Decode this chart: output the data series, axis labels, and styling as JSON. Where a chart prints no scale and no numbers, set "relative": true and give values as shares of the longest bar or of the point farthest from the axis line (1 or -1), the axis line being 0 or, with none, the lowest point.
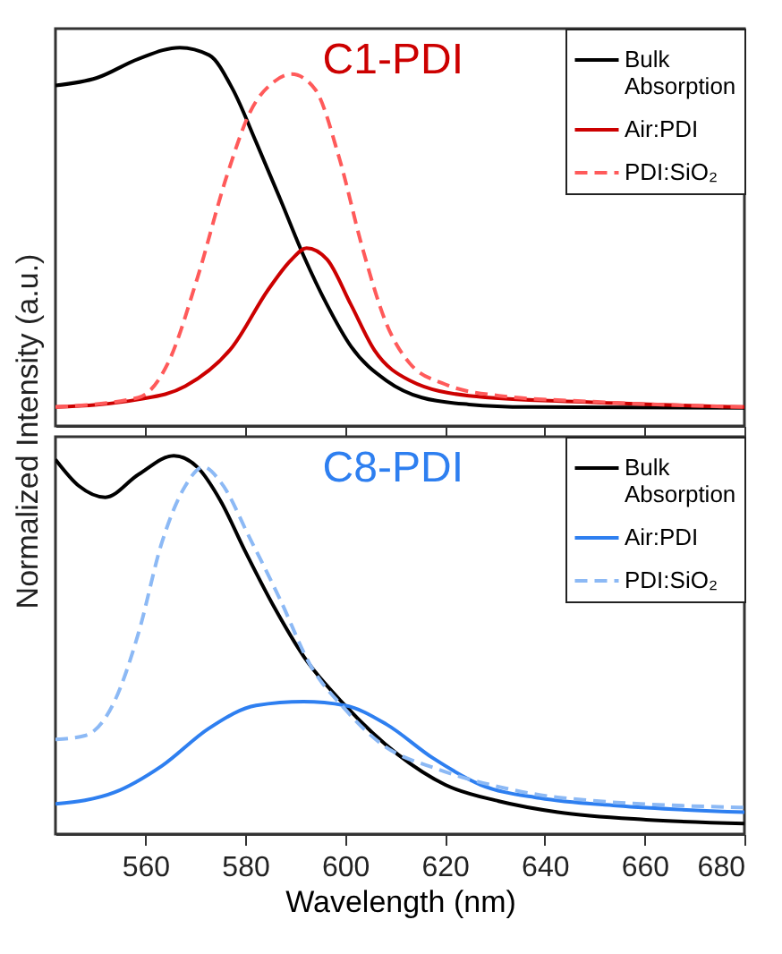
{
  "chart_data": [
    {
      "type": "line",
      "title": "C1-PDI",
      "relative": true,
      "ylabel": "Normalized Intensity (a.u.)",
      "xlim": [
        542,
        680
      ],
      "xticks": [
        560,
        580,
        600,
        620,
        640,
        660,
        680
      ],
      "tick_labels": false,
      "grid": false,
      "legend": "top right",
      "marker": "none",
      "series": [
        {
          "name": "Bulk\nAbsorption",
          "color": "#000000",
          "line_style": "solid",
          "x": [
            542,
            550.3,
            558.6,
            566.9,
            572.8,
            577.5,
            582.2,
            587,
            591.7,
            596.4,
            601.2,
            608.3,
            615.4,
            624.8,
            636.7,
            680
          ],
          "values": [
            0.9,
            0.92,
            0.97,
            1.0,
            0.98,
            0.89,
            0.75,
            0.6,
            0.45,
            0.32,
            0.21,
            0.12,
            0.075,
            0.057,
            0.05,
            0.048
          ]
        },
        {
          "name": "Air:PDI",
          "color": "#cc0000",
          "line_style": "solid",
          "x": [
            542,
            558.6,
            568,
            577.5,
            584.6,
            589.3,
            592.3,
            596.4,
            601.2,
            605.9,
            613,
            624.8,
            648.5,
            680
          ],
          "values": [
            0.05,
            0.07,
            0.105,
            0.21,
            0.36,
            0.44,
            0.47,
            0.44,
            0.32,
            0.2,
            0.12,
            0.08,
            0.063,
            0.05
          ]
        },
        {
          "name": "PDI:SiO₂",
          "color": "#ff5a5a",
          "line_style": "dashed",
          "x": [
            542,
            558.6,
            564.5,
            570.4,
            576.3,
            581,
            585.8,
            589.3,
            594,
            598.8,
            603.5,
            608.3,
            613,
            620.1,
            630.8,
            648.5,
            680
          ],
          "values": [
            0.05,
            0.075,
            0.165,
            0.39,
            0.66,
            0.83,
            0.91,
            0.93,
            0.89,
            0.71,
            0.47,
            0.27,
            0.165,
            0.11,
            0.08,
            0.065,
            0.05
          ]
        }
      ]
    },
    {
      "type": "line",
      "title": "C8-PDI",
      "relative": true,
      "xlabel": "Wavelength (nm)",
      "xlim": [
        542,
        680
      ],
      "xticks": [
        560,
        580,
        600,
        620,
        640,
        660,
        680
      ],
      "grid": false,
      "legend": "top right",
      "marker": "none",
      "series": [
        {
          "name": "Bulk\nAbsorption",
          "color": "#000000",
          "line_style": "solid",
          "x": [
            542,
            546.7,
            552,
            558.6,
            565.7,
            570.4,
            575.1,
            579.9,
            585.8,
            591.7,
            600,
            610.6,
            620.1,
            630.8,
            642.6,
            660.3,
            680
          ],
          "values": [
            0.99,
            0.92,
            0.89,
            0.95,
            1.0,
            0.97,
            0.88,
            0.75,
            0.6,
            0.47,
            0.34,
            0.21,
            0.13,
            0.087,
            0.058,
            0.038,
            0.028
          ]
        },
        {
          "name": "Air:PDI",
          "color": "#2e7ff0",
          "line_style": "solid",
          "x": [
            542,
            553.8,
            563.3,
            572.8,
            582.2,
            591.7,
            600,
            608.3,
            617.7,
            627.2,
            639,
            654.4,
            680
          ],
          "values": [
            0.08,
            0.11,
            0.18,
            0.28,
            0.34,
            0.35,
            0.34,
            0.29,
            0.2,
            0.13,
            0.095,
            0.075,
            0.058
          ]
        },
        {
          "name": "PDI:SiO₂",
          "color": "#8cb9f5",
          "line_style": "dashed",
          "x": [
            542,
            547.9,
            553.8,
            558.6,
            563.3,
            568,
            571.6,
            575.1,
            581,
            587,
            592.9,
            600,
            607.1,
            618.9,
            630.8,
            642.6,
            680
          ],
          "values": [
            0.25,
            0.26,
            0.35,
            0.53,
            0.77,
            0.92,
            0.97,
            0.93,
            0.78,
            0.62,
            0.45,
            0.33,
            0.24,
            0.17,
            0.125,
            0.097,
            0.07
          ]
        }
      ]
    }
  ]
}
